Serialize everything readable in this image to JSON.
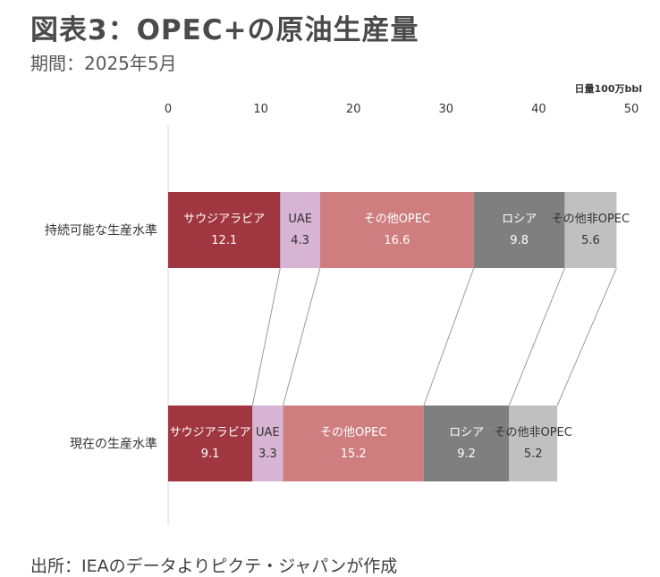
{
  "header": {
    "title": "図表3：OPEC+の原油生産量",
    "subtitle": "期間：2025年5月"
  },
  "footer": {
    "source": "出所：IEAのデータよりピクテ・ジャパンが作成"
  },
  "chart_data": {
    "type": "bar",
    "orientation": "horizontal",
    "stacked": true,
    "unit_label": "日量100万bbl",
    "xlim": [
      0,
      50
    ],
    "x_ticks": [
      0,
      10,
      20,
      30,
      40,
      50
    ],
    "axis_position": "top",
    "grid": false,
    "legend": "none (labels inside segments)",
    "categories": [
      "持続可能な生産水準",
      "現在の生産水準"
    ],
    "series": [
      {
        "name": "サウジアラビア",
        "values": [
          12.1,
          9.1
        ],
        "color": "#a0363f",
        "label_color": "#ffffff"
      },
      {
        "name": "UAE",
        "values": [
          4.3,
          3.3
        ],
        "color": "#d7b3d4",
        "label_color": "#404040"
      },
      {
        "name": "その他OPEC",
        "values": [
          16.6,
          15.2
        ],
        "color": "#cf7e80",
        "label_color": "#ffffff"
      },
      {
        "name": "ロシア",
        "values": [
          9.8,
          9.2
        ],
        "color": "#7f7f7f",
        "label_color": "#ffffff"
      },
      {
        "name": "その他非OPEC",
        "values": [
          5.6,
          5.2
        ],
        "color": "#c0c0c0",
        "label_color": "#404040"
      }
    ],
    "connector_lines": true
  }
}
